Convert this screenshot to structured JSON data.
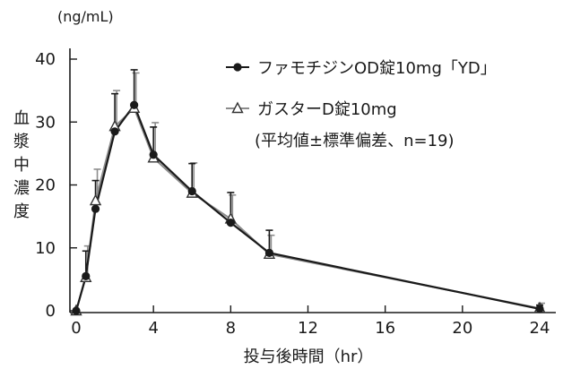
{
  "chart_data": {
    "type": "line",
    "title": "",
    "unit_label": "(ng/mL)",
    "ylabel": "血漿中濃度",
    "xlabel": "投与後時間（hr）",
    "xlim": [
      0,
      24
    ],
    "ylim": [
      0,
      40
    ],
    "x_ticks": [
      0,
      4,
      8,
      12,
      16,
      20,
      24
    ],
    "y_ticks": [
      0,
      10,
      20,
      30,
      40
    ],
    "x_tick_labels": [
      "0",
      "4",
      "8",
      "12",
      "16",
      "20",
      "24"
    ],
    "y_tick_labels": [
      "0",
      "10",
      "20",
      "30",
      "40"
    ],
    "legend_note": "(平均値±標準偏差、n=19)",
    "legend_position": "top-right",
    "grid": false,
    "series": [
      {
        "name": "ファモチジンOD錠10mg「YD」",
        "marker": "circle",
        "color": "#1a1a1a",
        "x": [
          0,
          0.5,
          1,
          2,
          3,
          4,
          6,
          8,
          10,
          24
        ],
        "y": [
          0,
          5.5,
          16.2,
          28.5,
          32.7,
          24.8,
          19.0,
          14.0,
          9.2,
          0.3
        ],
        "sd": [
          0,
          4.0,
          4.5,
          6.0,
          5.6,
          4.4,
          4.4,
          4.8,
          3.6,
          0.6
        ]
      },
      {
        "name": "ガスターD錠10mg",
        "marker": "triangle",
        "color": "#8c8c8c",
        "x": [
          0,
          0.5,
          1,
          2,
          3,
          4,
          6,
          8,
          10,
          24
        ],
        "y": [
          0,
          5.3,
          17.5,
          29.3,
          32.2,
          24.3,
          18.7,
          14.6,
          9.0,
          0.4
        ],
        "sd": [
          0,
          5.0,
          5.0,
          5.7,
          5.6,
          5.6,
          4.8,
          3.8,
          3.0,
          0.8
        ]
      }
    ]
  }
}
